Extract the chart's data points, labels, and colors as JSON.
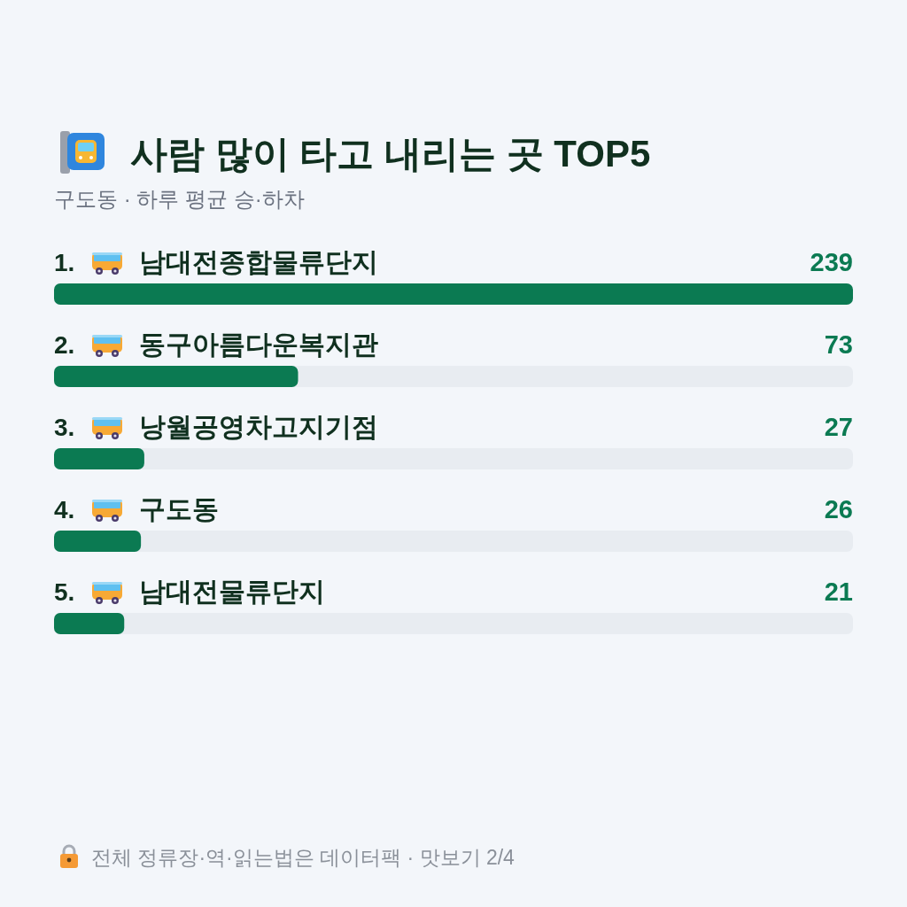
{
  "chart_data": {
    "type": "bar",
    "orientation": "horizontal",
    "title": "사람 많이 타고 내리는 곳 TOP5",
    "subtitle": "구도동 · 하루 평균 승·하차",
    "categories": [
      "1. 남대전종합물류단지",
      "2. 동구아름다운복지관",
      "3. 낭월공영차고지기점",
      "4. 구도동",
      "5. 남대전물류단지"
    ],
    "values": [
      239,
      73,
      27,
      26,
      21
    ],
    "color": "#0b7a52",
    "data_labels": true,
    "annotations": [
      "전체 정류장·역·읽는법은 데이터팩 · 맛보기 2/4"
    ]
  }
}
